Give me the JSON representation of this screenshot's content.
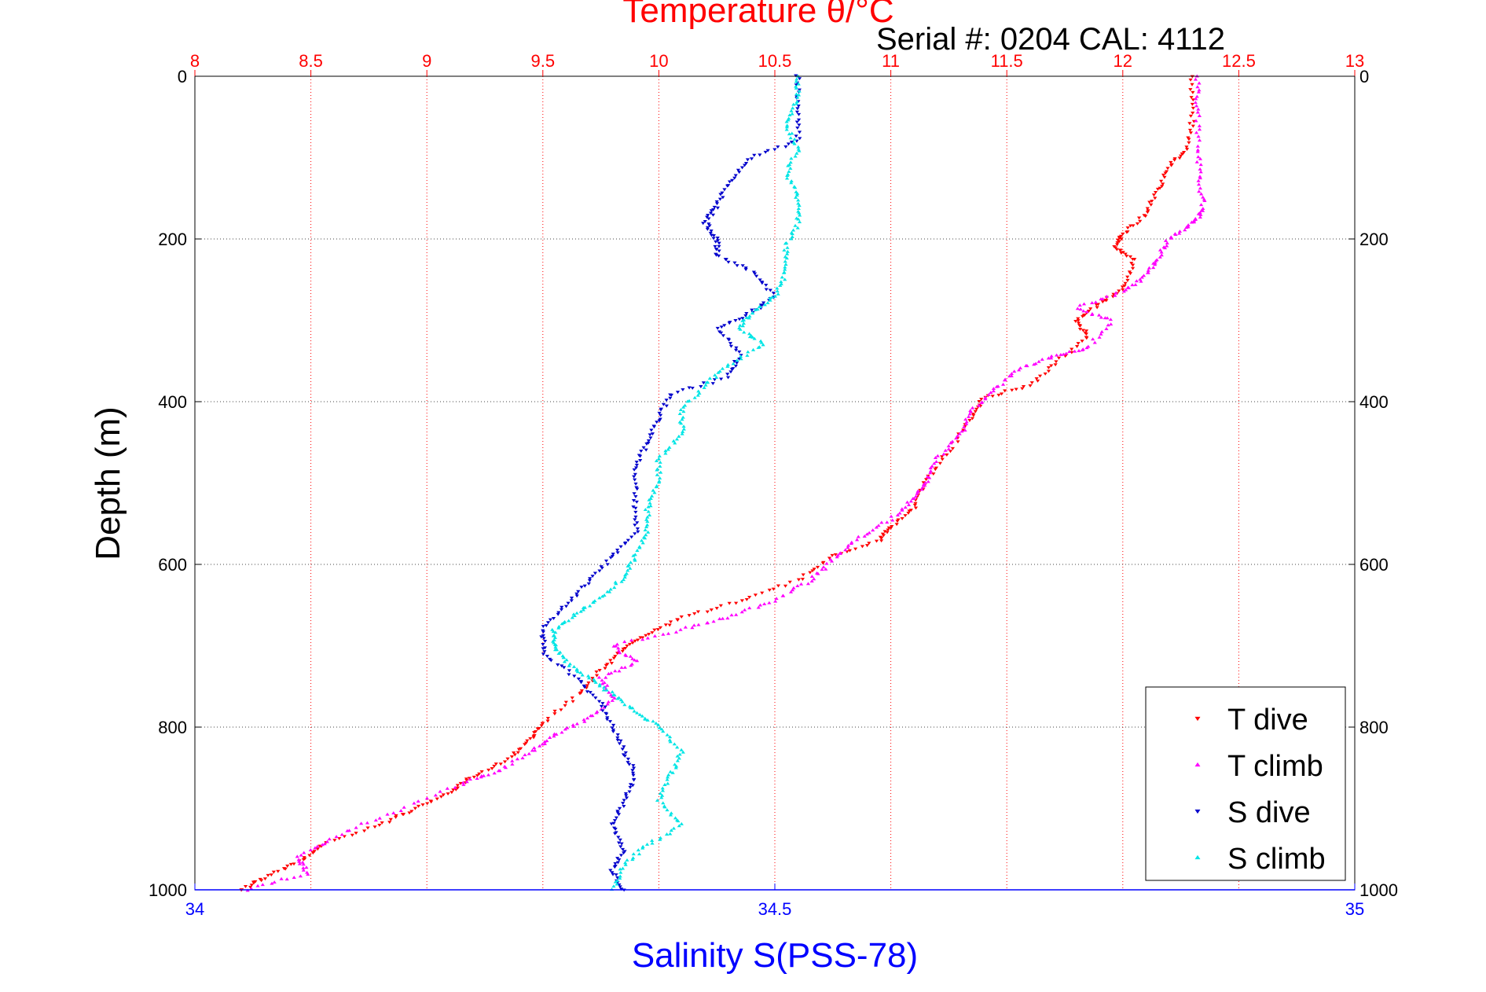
{
  "colors": {
    "temperature_axis": "#ff0000",
    "salinity_axis": "#0000ff",
    "t_dive": "#ff0000",
    "t_climb": "#ff00ff",
    "s_dive": "#0000cc",
    "s_climb": "#00e5e5",
    "grid": "#444444"
  },
  "chart_data": {
    "type": "scatter",
    "title": "Temperature θ/°C",
    "subtitle": "Serial #: 0204  CAL: 4112",
    "ylabel": "Depth (m)",
    "xlabel_bottom": "Salinity S(PSS-78)",
    "xlabel_top": "Temperature θ/°C",
    "ylim": [
      0,
      1000
    ],
    "y_reversed": true,
    "yticks": [
      0,
      200,
      400,
      600,
      800,
      1000
    ],
    "temperature_axis": {
      "position": "top",
      "range": [
        8,
        13
      ],
      "ticks": [
        8,
        8.5,
        9,
        9.5,
        10,
        10.5,
        11,
        11.5,
        12,
        12.5,
        13
      ],
      "tick_labels": [
        "8",
        "8.5",
        "9",
        "9.5",
        "10",
        "10.5",
        "11",
        "11.5",
        "12",
        "12.5",
        "13"
      ]
    },
    "salinity_axis": {
      "position": "bottom",
      "range": [
        34,
        35
      ],
      "ticks": [
        34,
        34.5,
        35
      ],
      "tick_labels": [
        "34",
        "34.5",
        "35"
      ]
    },
    "grid": true,
    "legend_position": "bottom-right",
    "series": [
      {
        "name": "T dive",
        "axis": "temperature",
        "marker": "triangle-down",
        "color": "#ff0000",
        "points": [
          [
            12.3,
            0
          ],
          [
            12.3,
            50
          ],
          [
            12.28,
            90
          ],
          [
            12.2,
            110
          ],
          [
            12.15,
            140
          ],
          [
            12.1,
            170
          ],
          [
            12.0,
            195
          ],
          [
            11.97,
            210
          ],
          [
            12.05,
            225
          ],
          [
            12.0,
            260
          ],
          [
            11.9,
            280
          ],
          [
            11.8,
            300
          ],
          [
            11.85,
            320
          ],
          [
            11.72,
            350
          ],
          [
            11.6,
            380
          ],
          [
            11.4,
            395
          ],
          [
            11.35,
            420
          ],
          [
            11.25,
            460
          ],
          [
            11.15,
            500
          ],
          [
            11.1,
            530
          ],
          [
            11.0,
            555
          ],
          [
            10.95,
            570
          ],
          [
            10.75,
            590
          ],
          [
            10.6,
            620
          ],
          [
            10.35,
            645
          ],
          [
            10.1,
            665
          ],
          [
            9.95,
            685
          ],
          [
            9.85,
            705
          ],
          [
            9.75,
            730
          ],
          [
            9.65,
            760
          ],
          [
            9.5,
            795
          ],
          [
            9.45,
            815
          ],
          [
            9.35,
            840
          ],
          [
            9.2,
            860
          ],
          [
            9.1,
            880
          ],
          [
            8.95,
            900
          ],
          [
            8.8,
            920
          ],
          [
            8.55,
            945
          ],
          [
            8.45,
            965
          ],
          [
            8.3,
            985
          ],
          [
            8.2,
            1000
          ]
        ]
      },
      {
        "name": "T climb",
        "axis": "temperature",
        "marker": "triangle-up",
        "color": "#ff00ff",
        "points": [
          [
            8.22,
            1000
          ],
          [
            8.48,
            980
          ],
          [
            8.45,
            960
          ],
          [
            8.6,
            935
          ],
          [
            8.85,
            905
          ],
          [
            9.15,
            870
          ],
          [
            9.3,
            855
          ],
          [
            9.45,
            830
          ],
          [
            9.55,
            810
          ],
          [
            9.7,
            790
          ],
          [
            9.8,
            765
          ],
          [
            9.75,
            740
          ],
          [
            9.9,
            720
          ],
          [
            9.8,
            700
          ],
          [
            10.1,
            680
          ],
          [
            10.3,
            665
          ],
          [
            10.5,
            645
          ],
          [
            10.65,
            620
          ],
          [
            10.75,
            595
          ],
          [
            10.85,
            570
          ],
          [
            11.0,
            545
          ],
          [
            11.1,
            520
          ],
          [
            11.15,
            500
          ],
          [
            11.2,
            470
          ],
          [
            11.3,
            440
          ],
          [
            11.35,
            410
          ],
          [
            11.45,
            385
          ],
          [
            11.55,
            360
          ],
          [
            11.7,
            345
          ],
          [
            11.85,
            335
          ],
          [
            11.95,
            300
          ],
          [
            11.8,
            285
          ],
          [
            12.0,
            265
          ],
          [
            12.1,
            245
          ],
          [
            12.15,
            225
          ],
          [
            12.2,
            200
          ],
          [
            12.3,
            180
          ],
          [
            12.35,
            165
          ],
          [
            12.33,
            130
          ],
          [
            12.33,
            90
          ],
          [
            12.32,
            40
          ],
          [
            12.32,
            0
          ]
        ]
      },
      {
        "name": "S dive",
        "axis": "salinity",
        "marker": "triangle-down",
        "color": "#0000cc",
        "points": [
          [
            34.52,
            0
          ],
          [
            34.52,
            40
          ],
          [
            34.52,
            80
          ],
          [
            34.48,
            100
          ],
          [
            34.46,
            130
          ],
          [
            34.45,
            160
          ],
          [
            34.44,
            180
          ],
          [
            34.45,
            200
          ],
          [
            34.45,
            220
          ],
          [
            34.48,
            240
          ],
          [
            34.5,
            270
          ],
          [
            34.48,
            290
          ],
          [
            34.45,
            310
          ],
          [
            34.47,
            340
          ],
          [
            34.46,
            370
          ],
          [
            34.41,
            390
          ],
          [
            34.4,
            420
          ],
          [
            34.39,
            450
          ],
          [
            34.38,
            480
          ],
          [
            34.38,
            520
          ],
          [
            34.38,
            560
          ],
          [
            34.36,
            590
          ],
          [
            34.34,
            620
          ],
          [
            34.32,
            650
          ],
          [
            34.3,
            680
          ],
          [
            34.3,
            710
          ],
          [
            34.33,
            740
          ],
          [
            34.35,
            770
          ],
          [
            34.36,
            800
          ],
          [
            34.37,
            830
          ],
          [
            34.38,
            860
          ],
          [
            34.37,
            890
          ],
          [
            34.36,
            920
          ],
          [
            34.37,
            950
          ],
          [
            34.36,
            975
          ],
          [
            34.37,
            1000
          ]
        ]
      },
      {
        "name": "S climb",
        "axis": "salinity",
        "marker": "triangle-up",
        "color": "#00e5e5",
        "points": [
          [
            34.36,
            1000
          ],
          [
            34.37,
            970
          ],
          [
            34.39,
            945
          ],
          [
            34.42,
            920
          ],
          [
            34.4,
            890
          ],
          [
            34.41,
            860
          ],
          [
            34.42,
            830
          ],
          [
            34.4,
            800
          ],
          [
            34.38,
            780
          ],
          [
            34.36,
            760
          ],
          [
            34.34,
            740
          ],
          [
            34.32,
            720
          ],
          [
            34.31,
            700
          ],
          [
            34.31,
            680
          ],
          [
            34.33,
            660
          ],
          [
            34.35,
            640
          ],
          [
            34.37,
            615
          ],
          [
            34.38,
            590
          ],
          [
            34.39,
            560
          ],
          [
            34.39,
            530
          ],
          [
            34.4,
            500
          ],
          [
            34.4,
            470
          ],
          [
            34.42,
            440
          ],
          [
            34.42,
            410
          ],
          [
            34.44,
            380
          ],
          [
            34.46,
            355
          ],
          [
            34.49,
            330
          ],
          [
            34.47,
            310
          ],
          [
            34.48,
            290
          ],
          [
            34.5,
            270
          ],
          [
            34.51,
            240
          ],
          [
            34.51,
            210
          ],
          [
            34.52,
            180
          ],
          [
            34.52,
            150
          ],
          [
            34.51,
            120
          ],
          [
            34.52,
            90
          ],
          [
            34.51,
            60
          ],
          [
            34.52,
            30
          ],
          [
            34.52,
            0
          ]
        ]
      }
    ]
  }
}
